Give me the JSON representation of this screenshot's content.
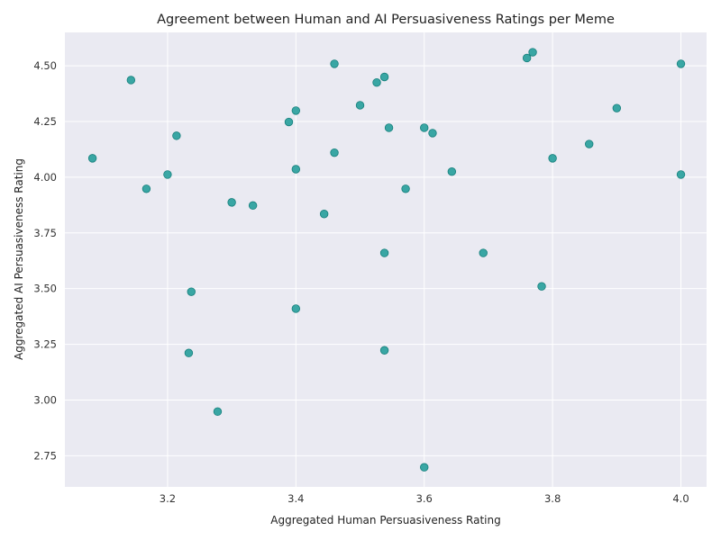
{
  "chart_data": {
    "type": "scatter",
    "title": "Agreement between Human and AI Persuasiveness Ratings per Meme",
    "xlabel": "Aggregated Human Persuasiveness Rating",
    "ylabel": "Aggregated AI Persuasiveness Rating",
    "xlim": [
      3.04,
      4.04
    ],
    "ylim": [
      2.61,
      4.65
    ],
    "xticks": [
      3.2,
      3.4,
      3.6,
      3.8,
      4.0
    ],
    "xtick_labels": [
      "3.2",
      "3.4",
      "3.6",
      "3.8",
      "4.0"
    ],
    "yticks": [
      2.75,
      3.0,
      3.25,
      3.5,
      3.75,
      4.0,
      4.25,
      4.5
    ],
    "ytick_labels": [
      "2.75",
      "3.00",
      "3.25",
      "3.50",
      "3.75",
      "4.00",
      "4.25",
      "4.50"
    ],
    "grid": true,
    "background_color": "#eaeaf2",
    "point_color": "#1a9a96",
    "points": [
      {
        "x": 3.083,
        "y": 4.085
      },
      {
        "x": 3.143,
        "y": 4.436
      },
      {
        "x": 3.167,
        "y": 3.948
      },
      {
        "x": 3.2,
        "y": 4.012
      },
      {
        "x": 3.214,
        "y": 4.186
      },
      {
        "x": 3.233,
        "y": 3.211
      },
      {
        "x": 3.237,
        "y": 3.486
      },
      {
        "x": 3.278,
        "y": 2.948
      },
      {
        "x": 3.3,
        "y": 3.887
      },
      {
        "x": 3.333,
        "y": 3.873
      },
      {
        "x": 3.389,
        "y": 4.248
      },
      {
        "x": 3.4,
        "y": 4.299
      },
      {
        "x": 3.4,
        "y": 4.036
      },
      {
        "x": 3.4,
        "y": 3.41
      },
      {
        "x": 3.444,
        "y": 3.835
      },
      {
        "x": 3.46,
        "y": 4.509
      },
      {
        "x": 3.46,
        "y": 4.11
      },
      {
        "x": 3.5,
        "y": 4.323
      },
      {
        "x": 3.526,
        "y": 4.425
      },
      {
        "x": 3.538,
        "y": 4.45
      },
      {
        "x": 3.538,
        "y": 3.66
      },
      {
        "x": 3.538,
        "y": 3.223
      },
      {
        "x": 3.545,
        "y": 4.222
      },
      {
        "x": 3.571,
        "y": 3.948
      },
      {
        "x": 3.6,
        "y": 4.222
      },
      {
        "x": 3.6,
        "y": 2.698
      },
      {
        "x": 3.613,
        "y": 4.198
      },
      {
        "x": 3.643,
        "y": 4.025
      },
      {
        "x": 3.692,
        "y": 3.66
      },
      {
        "x": 3.76,
        "y": 4.535
      },
      {
        "x": 3.769,
        "y": 4.561
      },
      {
        "x": 3.783,
        "y": 3.51
      },
      {
        "x": 3.8,
        "y": 4.085
      },
      {
        "x": 3.857,
        "y": 4.149
      },
      {
        "x": 3.9,
        "y": 4.31
      },
      {
        "x": 4.0,
        "y": 4.509
      },
      {
        "x": 4.0,
        "y": 4.012
      }
    ]
  }
}
